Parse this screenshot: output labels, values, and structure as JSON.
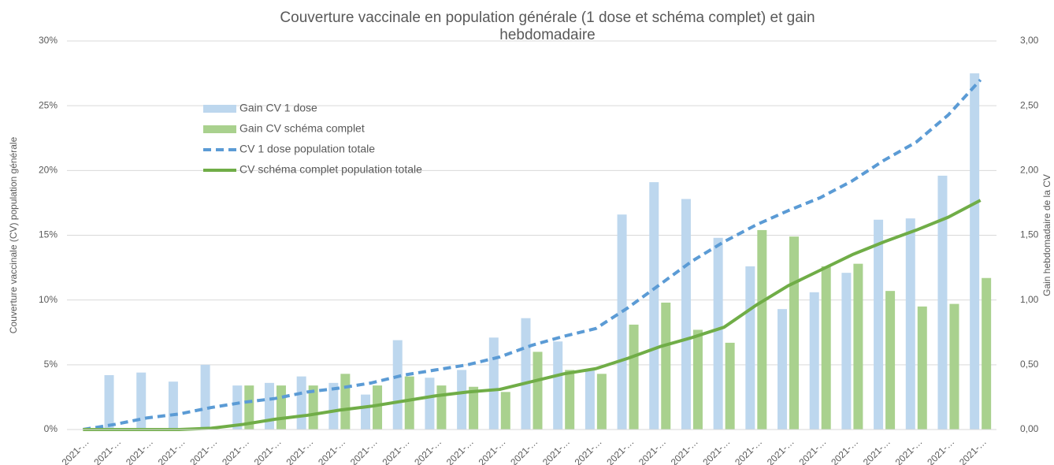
{
  "chart_data": {
    "type": "combo",
    "title": "Couverture vaccinale en population générale (1 dose et schéma complet) et gain hebdomadaire",
    "y_label": "Couverture vaccinale (CV) population générale",
    "y2_label": "Gain hebdomadaire de la CV",
    "categories": [
      "2021-…",
      "2021-…",
      "2021-…",
      "2021-…",
      "2021-…",
      "2021-…",
      "2021-…",
      "2021-…",
      "2021-…",
      "2021-…",
      "2021-…",
      "2021-…",
      "2021-…",
      "2021-…",
      "2021-…",
      "2021-…",
      "2021-…",
      "2021-…",
      "2021-…",
      "2021-…",
      "2021-…",
      "2021-…",
      "2021-…",
      "2021-…",
      "2021-…",
      "2021-…",
      "2021-…",
      "2021-…",
      "2021-…"
    ],
    "ylim": [
      0,
      30
    ],
    "yticks": [
      {
        "value": 0,
        "label": "0%"
      },
      {
        "value": 5,
        "label": "5%"
      },
      {
        "value": 10,
        "label": "10%"
      },
      {
        "value": 15,
        "label": "15%"
      },
      {
        "value": 20,
        "label": "20%"
      },
      {
        "value": 25,
        "label": "25%"
      },
      {
        "value": 30,
        "label": "30%"
      }
    ],
    "y2lim": [
      0,
      3
    ],
    "y2ticks": [
      {
        "value": 0,
        "label": "0,00"
      },
      {
        "value": 0.5,
        "label": "0,50"
      },
      {
        "value": 1,
        "label": "1,00"
      },
      {
        "value": 1.5,
        "label": "1,50"
      },
      {
        "value": 2,
        "label": "2,00"
      },
      {
        "value": 2.5,
        "label": "2,50"
      },
      {
        "value": 3,
        "label": "3,00"
      }
    ],
    "grid": true,
    "legend": "upper-left",
    "series": [
      {
        "name": "Gain CV 1 dose",
        "kind": "bar",
        "axis": "y2",
        "color": "#bdd7ee",
        "values": [
          null,
          0.42,
          0.44,
          0.37,
          0.5,
          0.34,
          0.36,
          0.41,
          0.36,
          0.27,
          0.69,
          0.4,
          0.46,
          0.71,
          0.86,
          0.68,
          0.46,
          1.66,
          1.91,
          1.78,
          1.48,
          1.26,
          0.93,
          1.06,
          1.21,
          1.62,
          1.63,
          1.96,
          2.75
        ]
      },
      {
        "name": "Gain CV schéma complet",
        "kind": "bar",
        "axis": "y2",
        "color": "#a9d18e",
        "values": [
          null,
          null,
          null,
          null,
          null,
          0.34,
          0.34,
          0.34,
          0.43,
          0.34,
          0.41,
          0.34,
          0.33,
          0.29,
          0.6,
          0.46,
          0.43,
          0.81,
          0.98,
          0.77,
          0.67,
          1.54,
          1.49,
          1.26,
          1.28,
          1.07,
          0.95,
          0.97,
          1.17
        ]
      },
      {
        "name": "CV 1 dose population totale",
        "kind": "line",
        "dashed": true,
        "color": "#5b9bd5",
        "values": [
          0,
          0.4,
          0.9,
          1.2,
          1.7,
          2.1,
          2.4,
          2.9,
          3.2,
          3.6,
          4.2,
          4.6,
          5.0,
          5.6,
          6.5,
          7.2,
          7.8,
          9.4,
          11.2,
          13.0,
          14.5,
          15.8,
          16.9,
          17.9,
          19.2,
          20.8,
          22.2,
          24.3,
          27.0
        ]
      },
      {
        "name": "CV schéma complet population totale",
        "kind": "line",
        "dashed": false,
        "color": "#70ad47",
        "values": [
          0,
          0,
          0,
          0,
          0.1,
          0.4,
          0.8,
          1.1,
          1.5,
          1.8,
          2.2,
          2.6,
          2.9,
          3.1,
          3.7,
          4.3,
          4.7,
          5.5,
          6.4,
          7.1,
          7.9,
          9.6,
          11.1,
          12.3,
          13.5,
          14.5,
          15.4,
          16.4,
          17.7
        ]
      }
    ]
  }
}
